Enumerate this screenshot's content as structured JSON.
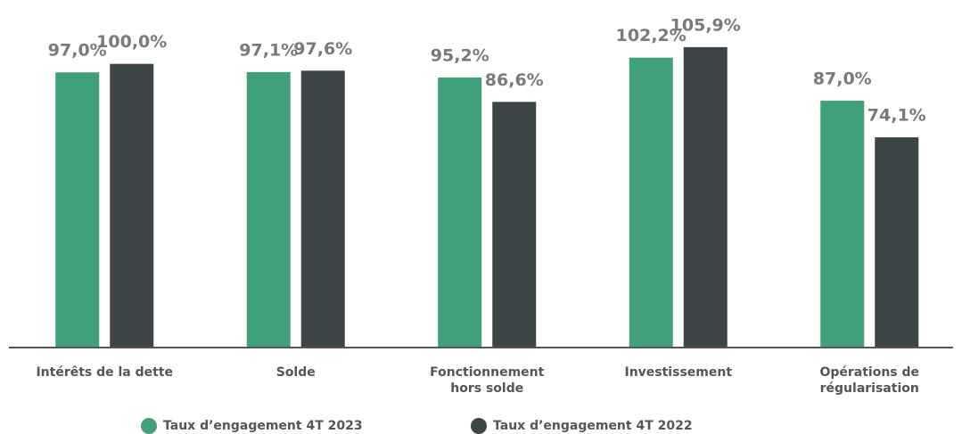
{
  "chart_data": {
    "type": "bar",
    "categories": [
      "Intérêts de la dette",
      "Solde",
      "Fonctionnement\nhors solde",
      "Investissement",
      "Opérations de\nrégularisation"
    ],
    "series": [
      {
        "name": "Taux d’engagement 4T 2023",
        "color": "#3fa07a",
        "values": [
          97.0,
          97.1,
          95.2,
          102.2,
          87.0
        ],
        "value_labels": [
          "97,0%",
          "97,1%",
          "95,2%",
          "102,2%",
          "87,0%"
        ]
      },
      {
        "name": "Taux d’engagement 4T 2022",
        "color": "#3d4446",
        "values": [
          100.0,
          97.6,
          86.6,
          105.9,
          74.1
        ],
        "value_labels": [
          "100,0%",
          "97,6%",
          "86,6%",
          "105,9%",
          "74,1%"
        ]
      }
    ],
    "ylim": [
      0,
      120
    ],
    "legend": "bottom"
  }
}
